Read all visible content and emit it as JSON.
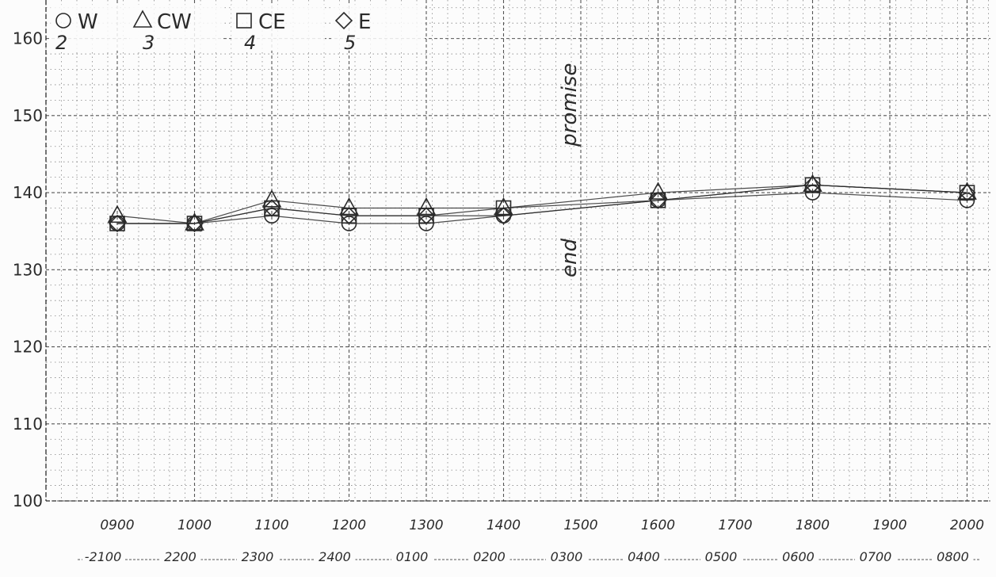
{
  "chart_data": {
    "type": "line",
    "title": "",
    "xlabel": "",
    "ylabel": "",
    "ylim": [
      100,
      165
    ],
    "y_ticks": [
      "100",
      "110",
      "120",
      "130",
      "140",
      "150",
      "160"
    ],
    "x_ticks_primary": [
      "0900",
      "1000",
      "1100",
      "1200",
      "1300",
      "1400",
      "1500",
      "1600",
      "1700",
      "1800",
      "1900",
      "2000"
    ],
    "x_ticks_secondary": [
      "-2100",
      "2200",
      "2300",
      "2400",
      "0100",
      "0200",
      "0300",
      "0400",
      "0500",
      "0600",
      "0700",
      "0800"
    ],
    "grid": true,
    "legend_position": "top-left",
    "legend": [
      {
        "symbol": "circle",
        "label": "W",
        "sub": "2"
      },
      {
        "symbol": "triangle",
        "label": "CW",
        "sub": "3"
      },
      {
        "symbol": "square",
        "label": "CE",
        "sub": "4"
      },
      {
        "symbol": "diamond",
        "label": "E",
        "sub": "5"
      }
    ],
    "series": [
      {
        "name": "W",
        "symbol": "circle",
        "x": [
          "0900",
          "1000",
          "1100",
          "1200",
          "1300",
          "1400",
          "1600",
          "1800",
          "2000"
        ],
        "values": [
          136,
          136,
          137,
          136,
          136,
          137,
          139,
          140,
          139
        ]
      },
      {
        "name": "CW",
        "symbol": "triangle",
        "x": [
          "0900",
          "1000",
          "1100",
          "1200",
          "1300",
          "1400",
          "1600",
          "1800",
          "2000"
        ],
        "values": [
          137,
          136,
          139,
          138,
          138,
          138,
          140,
          141,
          140
        ]
      },
      {
        "name": "CE",
        "symbol": "square",
        "x": [
          "0900",
          "1000",
          "1100",
          "1200",
          "1300",
          "1400",
          "1600",
          "1800",
          "2000"
        ],
        "values": [
          136,
          136,
          138,
          137,
          137,
          138,
          139,
          141,
          140
        ]
      },
      {
        "name": "E",
        "symbol": "diamond",
        "x": [
          "0900",
          "1000",
          "1100",
          "1200",
          "1300",
          "1400",
          "1600",
          "1800",
          "2000"
        ],
        "values": [
          136,
          136,
          138,
          137,
          137,
          137,
          139,
          141,
          140
        ]
      }
    ],
    "annotations": [
      {
        "text": "end",
        "x": "1500"
      },
      {
        "text": "promise",
        "x": "1500"
      }
    ],
    "colors": {
      "ink": "#2b2b2b",
      "grid": "#555555",
      "paper": "#fcfcfc"
    }
  }
}
